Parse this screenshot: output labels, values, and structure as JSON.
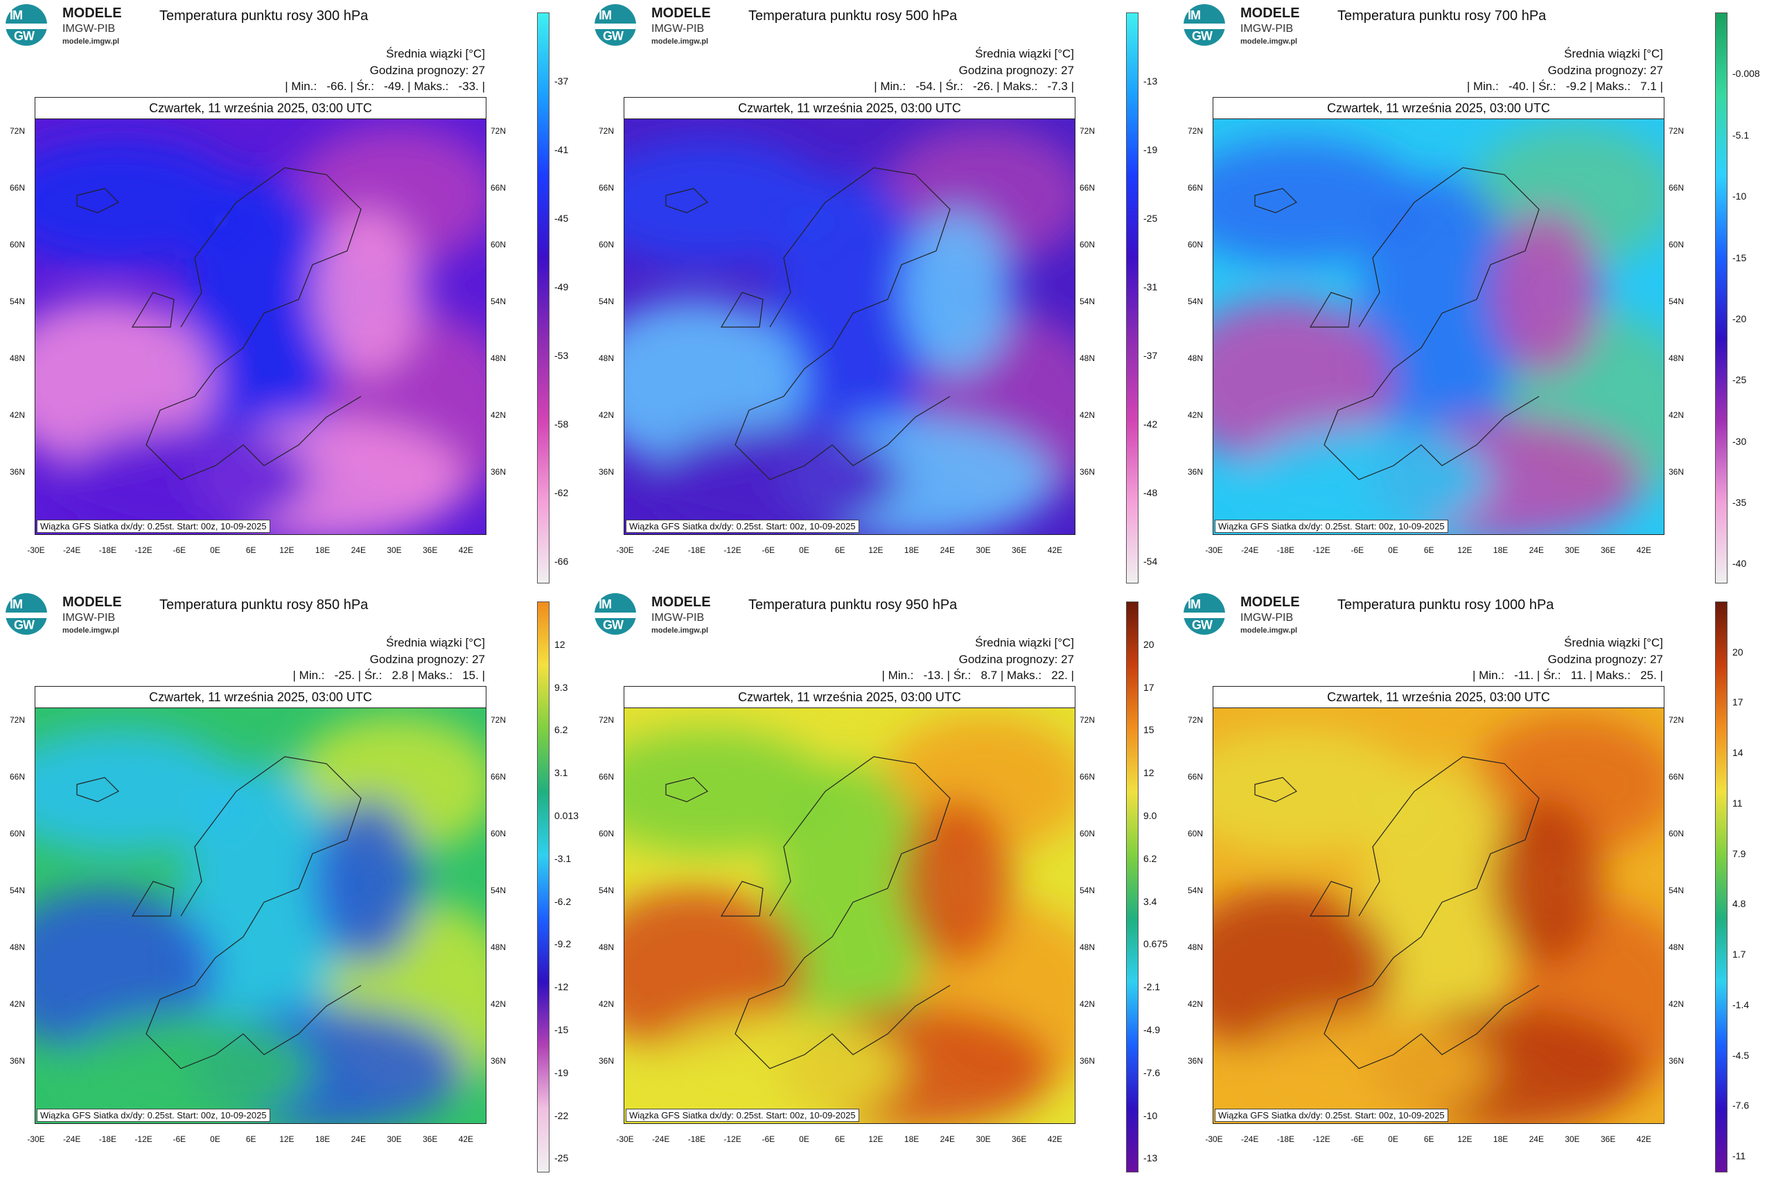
{
  "brand": {
    "logo_top": "IM",
    "logo_bottom": "GW",
    "name": "MODELE",
    "org": "IMGW-PIB",
    "site": "modele.imgw.pl"
  },
  "common": {
    "mean_label": "Średnia wiązki [°C]",
    "hour_label": "Godzina prognozy: 27",
    "date": "Czwartek, 11 września 2025, 03:00 UTC",
    "source": "Wiązka GFS Siatka dx/dy: 0.25st. Start: 00z, 10-09-2025",
    "lat_ticks": [
      "72N",
      "66N",
      "60N",
      "54N",
      "48N",
      "42N",
      "36N"
    ],
    "lon_ticks": [
      "-30E",
      "-24E",
      "-18E",
      "-12E",
      "-6E",
      "0E",
      "6E",
      "12E",
      "18E",
      "24E",
      "30E",
      "36E",
      "42E"
    ]
  },
  "panels": [
    {
      "title": "Temperatura punktu rosy 300 hPa",
      "stats": "| Min.:   -66. | Śr.:   -49. | Maks.:   -33. |",
      "colorbar": [
        "-37",
        "-41",
        "-45",
        "-49",
        "-53",
        "-58",
        "-62",
        "-66"
      ],
      "palette": "cold",
      "scheme": [
        "#1a2cf0",
        "#5a1bd8",
        "#b03cc0",
        "#f08ce0"
      ]
    },
    {
      "title": "Temperatura punktu rosy 500 hPa",
      "stats": "| Min.:   -54. | Śr.:   -26. | Maks.:   -7.3 |",
      "colorbar": [
        "-13",
        "-19",
        "-25",
        "-31",
        "-37",
        "-42",
        "-48",
        "-54"
      ],
      "palette": "cold",
      "scheme": [
        "#2740f2",
        "#4a1ec8",
        "#a13cb8",
        "#63c6ff"
      ]
    },
    {
      "title": "Temperatura punktu rosy 700 hPa",
      "stats": "| Min.:   -40. | Śr.:   -9.2 | Maks.:   7.1 |",
      "colorbar": [
        "-0.008",
        "-5.1",
        "-10",
        "-15",
        "-20",
        "-25",
        "-30",
        "-35",
        "-40"
      ],
      "palette": "mid",
      "scheme": [
        "#2b6cf2",
        "#28c8f5",
        "#55c79a",
        "#c049b0"
      ]
    },
    {
      "title": "Temperatura punktu rosy 850 hPa",
      "stats": "| Min.:   -25. | Śr.:   2.8 | Maks.:   15. |",
      "colorbar": [
        "12",
        "9.3",
        "6.2",
        "3.1",
        "0.013",
        "-3.1",
        "-6.2",
        "-9.2",
        "-12",
        "-15",
        "-19",
        "-22",
        "-25"
      ],
      "palette": "warm",
      "scheme": [
        "#2bc0f2",
        "#31c26a",
        "#c6e43b",
        "#2a55d8"
      ]
    },
    {
      "title": "Temperatura punktu rosy 950 hPa",
      "stats": "| Min.:   -13. | Śr.:   8.7 | Maks.:   22. |",
      "colorbar": [
        "20",
        "17",
        "15",
        "12",
        "9.0",
        "6.2",
        "3.4",
        "0.675",
        "-2.1",
        "-4.9",
        "-7.6",
        "-10",
        "-13"
      ],
      "palette": "warm",
      "scheme": [
        "#7ad13a",
        "#e6e232",
        "#f0a21f",
        "#d24a16"
      ]
    },
    {
      "title": "Temperatura punktu rosy 1000 hPa",
      "stats": "| Min.:   -11. | Śr.:   11. | Maks.:   25. |",
      "colorbar": [
        "20",
        "17",
        "14",
        "11",
        "7.9",
        "4.8",
        "1.7",
        "-1.4",
        "-4.5",
        "-7.6",
        "-11"
      ],
      "palette": "warm",
      "scheme": [
        "#e8d83a",
        "#f0b024",
        "#e06a18",
        "#b8380e"
      ]
    }
  ],
  "colorbar_palettes": {
    "cold": [
      "#40f0f0",
      "#1ca0ff",
      "#1c3cff",
      "#3c10c8",
      "#8c2cb4",
      "#d244b4",
      "#f4a0d8",
      "#f0f0f0"
    ],
    "mid": [
      "#1aa060",
      "#38d8a0",
      "#30d0ff",
      "#1c60ff",
      "#3010c0",
      "#a030b4",
      "#f0a0d8",
      "#f0f0f0"
    ],
    "warm": [
      "#f08c1c",
      "#f4e040",
      "#80d040",
      "#20b080",
      "#30d0f0",
      "#1c60ff",
      "#3010c0",
      "#b040b4",
      "#f0c0e0",
      "#f0f0f0"
    ],
    "warmdark": [
      "#6a1a0a",
      "#c8400e",
      "#f09020",
      "#f0e040",
      "#80d040",
      "#20b080",
      "#30d0f0",
      "#1c60ff",
      "#3010c0",
      "#6a10a0"
    ]
  }
}
